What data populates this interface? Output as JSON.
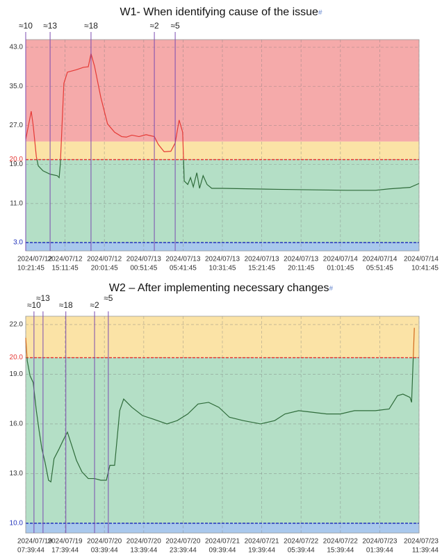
{
  "chart_data": [
    {
      "type": "line",
      "title": "W1- When identifying cause of the issue",
      "title_anchor": "#",
      "xlim": [
        0,
        10
      ],
      "ylim": [
        1.29,
        44.57
      ],
      "grid": true,
      "xticks": [
        {
          "value": 0,
          "label": [
            "2024/07/12",
            "10:21:45"
          ]
        },
        {
          "value": 1,
          "label": [
            "2024/07/12",
            "15:11:45"
          ]
        },
        {
          "value": 2,
          "label": [
            "2024/07/12",
            "20:01:45"
          ]
        },
        {
          "value": 3,
          "label": [
            "2024/07/13",
            "00:51:45"
          ]
        },
        {
          "value": 4,
          "label": [
            "2024/07/13",
            "05:41:45"
          ]
        },
        {
          "value": 5,
          "label": [
            "2024/07/13",
            "10:31:45"
          ]
        },
        {
          "value": 6,
          "label": [
            "2024/07/13",
            "15:21:45"
          ]
        },
        {
          "value": 7,
          "label": [
            "2024/07/13",
            "20:11:45"
          ]
        },
        {
          "value": 8,
          "label": [
            "2024/07/14",
            "01:01:45"
          ]
        },
        {
          "value": 9,
          "label": [
            "2024/07/14",
            "05:51:45"
          ]
        },
        {
          "value": 10,
          "label": [
            "2024/07/14",
            "10:41:45"
          ]
        }
      ],
      "yticks": [
        {
          "value": 43,
          "label": "43.0"
        },
        {
          "value": 35,
          "label": "35.0"
        },
        {
          "value": 27,
          "label": "27.0"
        },
        {
          "value": 20,
          "label": "20.0"
        },
        {
          "value": 19,
          "label": "19.0"
        },
        {
          "value": 11,
          "label": "11.0"
        },
        {
          "value": 3,
          "label": "3.0"
        }
      ],
      "bands": [
        {
          "to": 3,
          "color": "#a9c8ec"
        },
        {
          "to": 20,
          "color": "#b4dfc6"
        },
        {
          "to": 23.7,
          "color": "#fbe3a6"
        },
        {
          "color": "#f5aaaa"
        }
      ],
      "thresholds": [
        {
          "value": 20,
          "color": "#e53935"
        },
        {
          "value": 3,
          "color": "#2233bb"
        }
      ],
      "annotations": [
        {
          "x": 0,
          "label": "≈10"
        },
        {
          "x": 0.62,
          "label": "≈13"
        },
        {
          "x": 1.66,
          "label": "≈18"
        },
        {
          "x": 3.27,
          "label": "≈2"
        },
        {
          "x": 3.8,
          "label": "≈5"
        }
      ],
      "annotation_color": "#7b4bb0",
      "series": [
        {
          "color": "#2e6b3a",
          "color_above": "#e53935",
          "split": 20,
          "x": [
            0,
            0.14,
            0.19,
            0.27,
            0.32,
            0.44,
            0.62,
            0.8,
            0.85,
            0.88,
            0.97,
            1.06,
            1.29,
            1.47,
            1.59,
            1.66,
            1.75,
            1.91,
            2.08,
            2.26,
            2.44,
            2.56,
            2.7,
            2.88,
            3.06,
            3.27,
            3.37,
            3.52,
            3.69,
            3.8,
            3.9,
            3.99,
            4.03,
            4.12,
            4.19,
            4.26,
            4.35,
            4.42,
            4.51,
            4.61,
            4.73,
            5,
            6.41,
            8.18,
            8.89,
            9.24,
            9.77,
            10
          ],
          "values": [
            24.1,
            29.9,
            27,
            20.6,
            18.7,
            17.7,
            17,
            16.7,
            16.3,
            19.1,
            35.6,
            37.9,
            38.4,
            38.9,
            39,
            41.7,
            39.1,
            32.7,
            27.3,
            25.6,
            24.7,
            24.6,
            25,
            24.7,
            25.1,
            24.7,
            23.1,
            21.6,
            21.7,
            23.4,
            28.1,
            25.6,
            15.6,
            14.9,
            16.3,
            14.4,
            17.3,
            14.1,
            16.7,
            14.9,
            14.1,
            14.1,
            13.9,
            13.7,
            13.7,
            14,
            14.3,
            15.1
          ]
        }
      ]
    },
    {
      "type": "line",
      "title": "W2 – After implementing necessary changes",
      "title_anchor": "#",
      "xlim": [
        0,
        10
      ],
      "ylim": [
        9.41,
        22.5
      ],
      "grid": true,
      "xticks": [
        {
          "value": 0,
          "label": [
            "2024/07/19",
            "07:39:44"
          ]
        },
        {
          "value": 1,
          "label": [
            "2024/07/19",
            "17:39:44"
          ]
        },
        {
          "value": 2,
          "label": [
            "2024/07/20",
            "03:39:44"
          ]
        },
        {
          "value": 3,
          "label": [
            "2024/07/20",
            "13:39:44"
          ]
        },
        {
          "value": 4,
          "label": [
            "2024/07/20",
            "23:39:44"
          ]
        },
        {
          "value": 5,
          "label": [
            "2024/07/21",
            "09:39:44"
          ]
        },
        {
          "value": 6,
          "label": [
            "2024/07/21",
            "19:39:44"
          ]
        },
        {
          "value": 7,
          "label": [
            "2024/07/22",
            "05:39:44"
          ]
        },
        {
          "value": 8,
          "label": [
            "2024/07/22",
            "15:39:44"
          ]
        },
        {
          "value": 9,
          "label": [
            "2024/07/23",
            "01:39:44"
          ]
        },
        {
          "value": 10,
          "label": [
            "2024/07/23",
            "11:39:44"
          ]
        }
      ],
      "yticks": [
        {
          "value": 22,
          "label": "22.0"
        },
        {
          "value": 20,
          "label": "20.0"
        },
        {
          "value": 19,
          "label": "19.0"
        },
        {
          "value": 16,
          "label": "16.0"
        },
        {
          "value": 13,
          "label": "13.0"
        },
        {
          "value": 10,
          "label": "10.0"
        }
      ],
      "bands": [
        {
          "to": 10,
          "color": "#a9c8ec"
        },
        {
          "to": 20,
          "color": "#b4dfc6"
        },
        {
          "color": "#fbe3a6"
        }
      ],
      "thresholds": [
        {
          "value": 20,
          "color": "#e53935"
        },
        {
          "value": 10,
          "color": "#2233bb"
        }
      ],
      "annotations": [
        {
          "x": 0.21,
          "label": "≈10"
        },
        {
          "x": 0.44,
          "label": "≈13"
        },
        {
          "x": 1.02,
          "label": "≈18"
        },
        {
          "x": 1.75,
          "label": "≈2"
        },
        {
          "x": 2.1,
          "label": "≈5"
        }
      ],
      "annotation_color": "#7b4bb0",
      "series": [
        {
          "color": "#2e6b3a",
          "color_above": "#d2691e",
          "split": 20,
          "x": [
            0,
            0.04,
            0.11,
            0.19,
            0.27,
            0.34,
            0.41,
            0.49,
            0.58,
            0.64,
            0.72,
            0.85,
            0.97,
            1.06,
            1.17,
            1.29,
            1.43,
            1.59,
            1.75,
            1.91,
            2.05,
            2.14,
            2.26,
            2.39,
            2.49,
            2.7,
            2.97,
            3.23,
            3.59,
            3.85,
            4.12,
            4.38,
            4.65,
            4.91,
            5.18,
            5.53,
            5.97,
            6.33,
            6.59,
            6.94,
            7.3,
            7.65,
            8,
            8.36,
            8.89,
            9.24,
            9.45,
            9.59,
            9.77,
            9.81,
            9.88
          ],
          "values": [
            21.2,
            19.8,
            18.9,
            18.5,
            16.8,
            15.6,
            14.5,
            13.7,
            12.6,
            12.5,
            13.9,
            14.5,
            15.1,
            15.5,
            14.7,
            13.8,
            13.1,
            12.7,
            12.7,
            12.6,
            12.6,
            13.5,
            13.5,
            16.8,
            17.5,
            17,
            16.5,
            16.3,
            16,
            16.2,
            16.6,
            17.2,
            17.3,
            17,
            16.4,
            16.2,
            16,
            16.2,
            16.6,
            16.8,
            16.7,
            16.6,
            16.6,
            16.8,
            16.8,
            16.9,
            17.7,
            17.8,
            17.6,
            17.3,
            21.8
          ]
        }
      ]
    }
  ]
}
